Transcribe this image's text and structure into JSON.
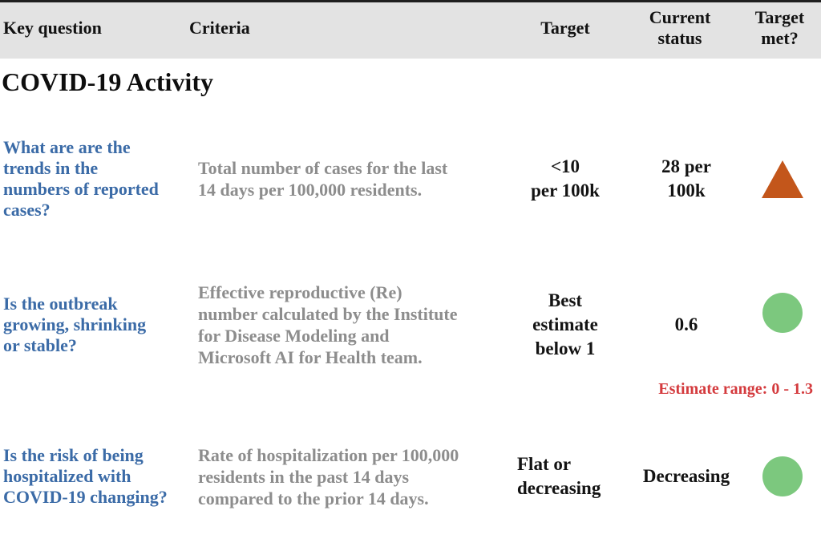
{
  "table": {
    "columns": [
      {
        "label": "Key question"
      },
      {
        "label": "Criteria"
      },
      {
        "label": "Target"
      },
      {
        "label": "Current\nstatus"
      },
      {
        "label": "Target\nmet?"
      }
    ]
  },
  "section_title": "COVID-19 Activity",
  "rows": [
    {
      "question": "What are are the\ntrends in the\nnumbers of reported\ncases?",
      "criteria": "Total number of cases for the last\n14 days per 100,000 residents.",
      "target": "<10\nper 100k",
      "current_status": "28 per\n100k",
      "target_met_state": "not met",
      "target_met_icon": "triangle-up"
    },
    {
      "question": "Is the outbreak\ngrowing, shrinking\nor stable?",
      "criteria": "Effective reproductive (Re)\nnumber calculated by the Institute\nfor Disease Modeling and\nMicrosoft AI for Health team.",
      "target": "Best\nestimate\nbelow 1",
      "current_status": "0.6",
      "target_met_state": "met",
      "target_met_icon": "green-circle",
      "note": "Estimate range: 0 - 1.3"
    },
    {
      "question": "Is the risk of being\nhospitalized with\nCOVID-19 changing?",
      "criteria": "Rate of hospitalization per 100,000\nresidents in the past 14 days\ncompared to the prior 14 days.",
      "target": "Flat or\ndecreasing",
      "current_status": "Decreasing",
      "target_met_state": "met",
      "target_met_icon": "green-circle"
    }
  ],
  "colors": {
    "header_bg": "#e3e3e3",
    "question_blue": "#3b6ba7",
    "criteria_gray": "#8d8d8d",
    "text_black": "#131313",
    "note_red": "#d43b3e",
    "triangle_orange": "#c3561b",
    "circle_green": "#7cc87e"
  }
}
